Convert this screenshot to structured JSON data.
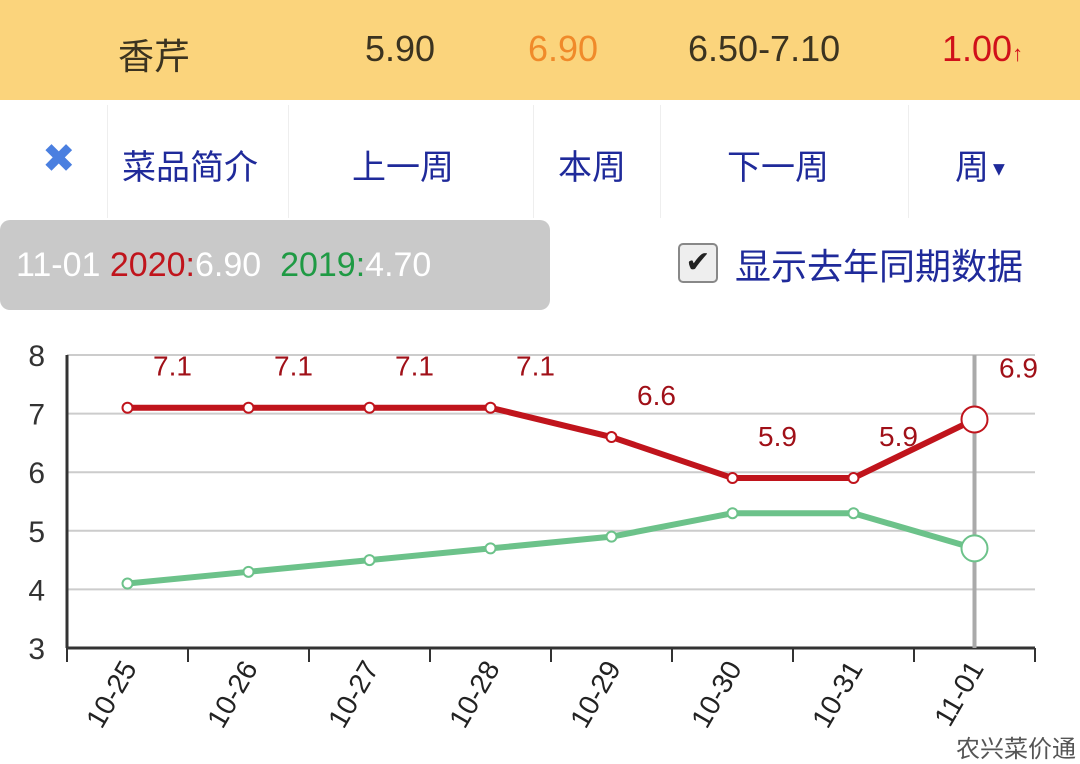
{
  "header": {
    "name": "香芹",
    "price_low": "5.90",
    "price_current": "6.90",
    "range": "6.50-7.10",
    "change": "1.00",
    "change_arrow": "↑"
  },
  "nav": {
    "close_icon": "x-icon",
    "intro": "菜品简介",
    "prev_week": "上一周",
    "this_week": "本周",
    "next_week": "下一周",
    "period": "周",
    "period_icon": "caret-down-icon"
  },
  "tooltip": {
    "date": "11-01",
    "year_a": "2020:",
    "value_a": "6.90",
    "year_b": "2019:",
    "value_b": "4.70"
  },
  "compare": {
    "label": "显示去年同期数据",
    "checked": true
  },
  "watermark": "农兴菜价通",
  "colors": {
    "s2020": "#c0141c",
    "s2019": "#6cc28a",
    "accent": "#fbd47c",
    "link": "#1f2a9a"
  },
  "chart_data": {
    "type": "line",
    "categories": [
      "10-25",
      "10-26",
      "10-27",
      "10-28",
      "10-29",
      "10-30",
      "10-31",
      "11-01"
    ],
    "series": [
      {
        "name": "2020",
        "values": [
          7.1,
          7.1,
          7.1,
          7.1,
          6.6,
          5.9,
          5.9,
          6.9
        ],
        "labels": [
          "7.1",
          "7.1",
          "7.1",
          "7.1",
          "6.6",
          "5.9",
          "5.9",
          "6.9"
        ]
      },
      {
        "name": "2019",
        "values": [
          4.1,
          4.3,
          4.5,
          4.7,
          4.9,
          5.3,
          5.3,
          4.7
        ]
      }
    ],
    "yticks": [
      "3",
      "4",
      "5",
      "6",
      "7",
      "8"
    ],
    "ylim": [
      3,
      8
    ],
    "grid": true,
    "highlight": "11-01"
  }
}
